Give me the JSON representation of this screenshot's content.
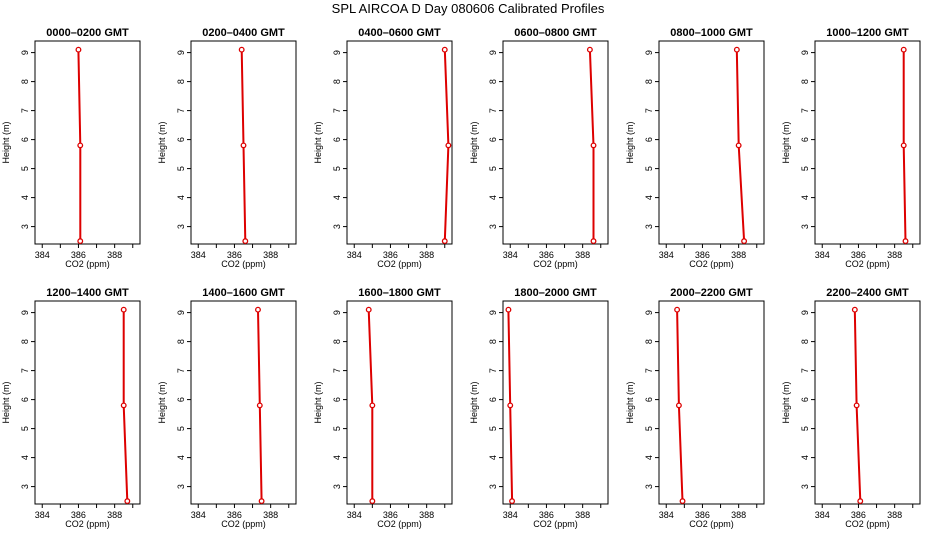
{
  "title": "SPL AIRCOA D  Day 080606  Calibrated Profiles",
  "colors": {
    "profile": "#dd0000",
    "axis": "#000000"
  },
  "chart_data": [
    {
      "type": "line",
      "title": "0000–0200 GMT",
      "xlabel": "CO2 (ppm)",
      "ylabel": "Height (m)",
      "xlim": [
        383.6,
        389.4
      ],
      "ylim": [
        2.4,
        9.4
      ],
      "xticks": [
        384,
        386,
        388
      ],
      "yticks": [
        3,
        4,
        5,
        6,
        7,
        8,
        9
      ],
      "x": [
        386.0,
        386.1,
        386.1
      ],
      "y": [
        9.1,
        5.8,
        2.5
      ]
    },
    {
      "type": "line",
      "title": "0200–0400 GMT",
      "xlabel": "CO2 (ppm)",
      "ylabel": "Height (m)",
      "xlim": [
        383.6,
        389.4
      ],
      "ylim": [
        2.4,
        9.4
      ],
      "xticks": [
        384,
        386,
        388
      ],
      "yticks": [
        3,
        4,
        5,
        6,
        7,
        8,
        9
      ],
      "x": [
        386.4,
        386.5,
        386.6
      ],
      "y": [
        9.1,
        5.8,
        2.5
      ]
    },
    {
      "type": "line",
      "title": "0400–0600 GMT",
      "xlabel": "CO2 (ppm)",
      "ylabel": "Height (m)",
      "xlim": [
        383.6,
        389.4
      ],
      "ylim": [
        2.4,
        9.4
      ],
      "xticks": [
        384,
        386,
        388
      ],
      "yticks": [
        3,
        4,
        5,
        6,
        7,
        8,
        9
      ],
      "x": [
        389.0,
        389.2,
        389.0
      ],
      "y": [
        9.1,
        5.8,
        2.5
      ]
    },
    {
      "type": "line",
      "title": "0600–0800 GMT",
      "xlabel": "CO2 (ppm)",
      "ylabel": "Height (m)",
      "xlim": [
        383.6,
        389.4
      ],
      "ylim": [
        2.4,
        9.4
      ],
      "xticks": [
        384,
        386,
        388
      ],
      "yticks": [
        3,
        4,
        5,
        6,
        7,
        8,
        9
      ],
      "x": [
        388.4,
        388.6,
        388.6
      ],
      "y": [
        9.1,
        5.8,
        2.5
      ]
    },
    {
      "type": "line",
      "title": "0800–1000 GMT",
      "xlabel": "CO2 (ppm)",
      "ylabel": "Height (m)",
      "xlim": [
        383.6,
        389.4
      ],
      "ylim": [
        2.4,
        9.4
      ],
      "xticks": [
        384,
        386,
        388
      ],
      "yticks": [
        3,
        4,
        5,
        6,
        7,
        8,
        9
      ],
      "x": [
        387.9,
        388.0,
        388.3
      ],
      "y": [
        9.1,
        5.8,
        2.5
      ]
    },
    {
      "type": "line",
      "title": "1000–1200 GMT",
      "xlabel": "CO2 (ppm)",
      "ylabel": "Height (m)",
      "xlim": [
        383.6,
        389.4
      ],
      "ylim": [
        2.4,
        9.4
      ],
      "xticks": [
        384,
        386,
        388
      ],
      "yticks": [
        3,
        4,
        5,
        6,
        7,
        8,
        9
      ],
      "x": [
        388.5,
        388.5,
        388.6
      ],
      "y": [
        9.1,
        5.8,
        2.5
      ]
    },
    {
      "type": "line",
      "title": "1200–1400 GMT",
      "xlabel": "CO2 (ppm)",
      "ylabel": "Height (m)",
      "xlim": [
        383.6,
        389.4
      ],
      "ylim": [
        2.4,
        9.4
      ],
      "xticks": [
        384,
        386,
        388
      ],
      "yticks": [
        3,
        4,
        5,
        6,
        7,
        8,
        9
      ],
      "x": [
        388.5,
        388.5,
        388.7
      ],
      "y": [
        9.1,
        5.8,
        2.5
      ]
    },
    {
      "type": "line",
      "title": "1400–1600 GMT",
      "xlabel": "CO2 (ppm)",
      "ylabel": "Height (m)",
      "xlim": [
        383.6,
        389.4
      ],
      "ylim": [
        2.4,
        9.4
      ],
      "xticks": [
        384,
        386,
        388
      ],
      "yticks": [
        3,
        4,
        5,
        6,
        7,
        8,
        9
      ],
      "x": [
        387.3,
        387.4,
        387.5
      ],
      "y": [
        9.1,
        5.8,
        2.5
      ]
    },
    {
      "type": "line",
      "title": "1600–1800 GMT",
      "xlabel": "CO2 (ppm)",
      "ylabel": "Height (m)",
      "xlim": [
        383.6,
        389.4
      ],
      "ylim": [
        2.4,
        9.4
      ],
      "xticks": [
        384,
        386,
        388
      ],
      "yticks": [
        3,
        4,
        5,
        6,
        7,
        8,
        9
      ],
      "x": [
        384.8,
        385.0,
        385.0
      ],
      "y": [
        9.1,
        5.8,
        2.5
      ]
    },
    {
      "type": "line",
      "title": "1800–2000 GMT",
      "xlabel": "CO2 (ppm)",
      "ylabel": "Height (m)",
      "xlim": [
        383.6,
        389.4
      ],
      "ylim": [
        2.4,
        9.4
      ],
      "xticks": [
        384,
        386,
        388
      ],
      "yticks": [
        3,
        4,
        5,
        6,
        7,
        8,
        9
      ],
      "x": [
        383.9,
        384.0,
        384.1
      ],
      "y": [
        9.1,
        5.8,
        2.5
      ]
    },
    {
      "type": "line",
      "title": "2000–2200 GMT",
      "xlabel": "CO2 (ppm)",
      "ylabel": "Height (m)",
      "xlim": [
        383.6,
        389.4
      ],
      "ylim": [
        2.4,
        9.4
      ],
      "xticks": [
        384,
        386,
        388
      ],
      "yticks": [
        3,
        4,
        5,
        6,
        7,
        8,
        9
      ],
      "x": [
        384.6,
        384.7,
        384.9
      ],
      "y": [
        9.1,
        5.8,
        2.5
      ]
    },
    {
      "type": "line",
      "title": "2200–2400 GMT",
      "xlabel": "CO2 (ppm)",
      "ylabel": "Height (m)",
      "xlim": [
        383.6,
        389.4
      ],
      "ylim": [
        2.4,
        9.4
      ],
      "xticks": [
        384,
        386,
        388
      ],
      "yticks": [
        3,
        4,
        5,
        6,
        7,
        8,
        9
      ],
      "x": [
        385.8,
        385.9,
        386.1
      ],
      "y": [
        9.1,
        5.8,
        2.5
      ]
    }
  ]
}
